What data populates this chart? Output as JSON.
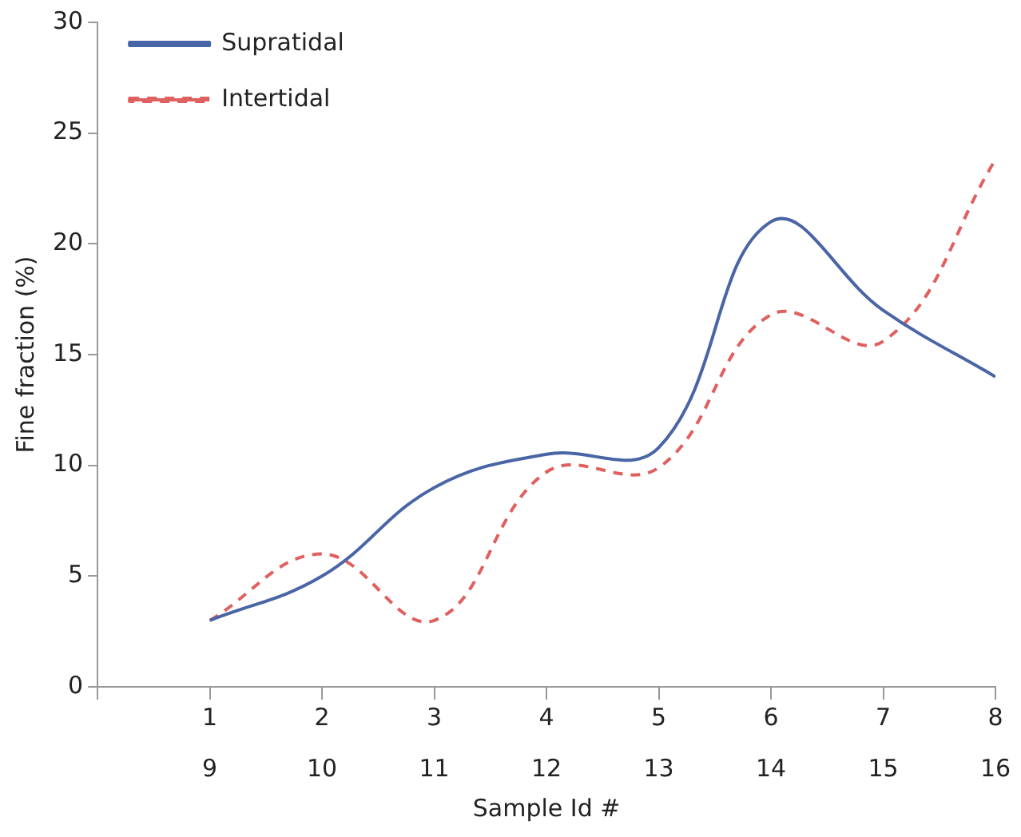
{
  "chart_data": {
    "type": "line",
    "xlabel": "Sample Id #",
    "ylabel": "Fine fraction (%)",
    "xlim": [
      0,
      8
    ],
    "xticks": [
      1,
      2,
      3,
      4,
      5,
      6,
      7,
      8
    ],
    "x2lim": [
      8,
      16
    ],
    "x2ticks": [
      9,
      10,
      11,
      12,
      13,
      14,
      15,
      16
    ],
    "ylim": [
      0,
      30
    ],
    "yticks": [
      0,
      5,
      10,
      15,
      20,
      25,
      30
    ],
    "grid": false,
    "legend": "top left",
    "marker": "none",
    "series": [
      {
        "name": "Supratidal",
        "color": "#4a65a5",
        "line_style": "solid",
        "x": [
          1,
          2,
          3,
          4,
          5,
          6,
          7,
          8
        ],
        "values": [
          3,
          5,
          9,
          10.5,
          10.8,
          21,
          17,
          14
        ]
      },
      {
        "name": "Intertidal",
        "color": "#e06060",
        "line_style": "dashed",
        "x": [
          1,
          2,
          3,
          4,
          5,
          6,
          7,
          8
        ],
        "values": [
          3,
          6,
          3,
          9.7,
          9.9,
          16.8,
          15.6,
          23.8
        ]
      }
    ]
  }
}
